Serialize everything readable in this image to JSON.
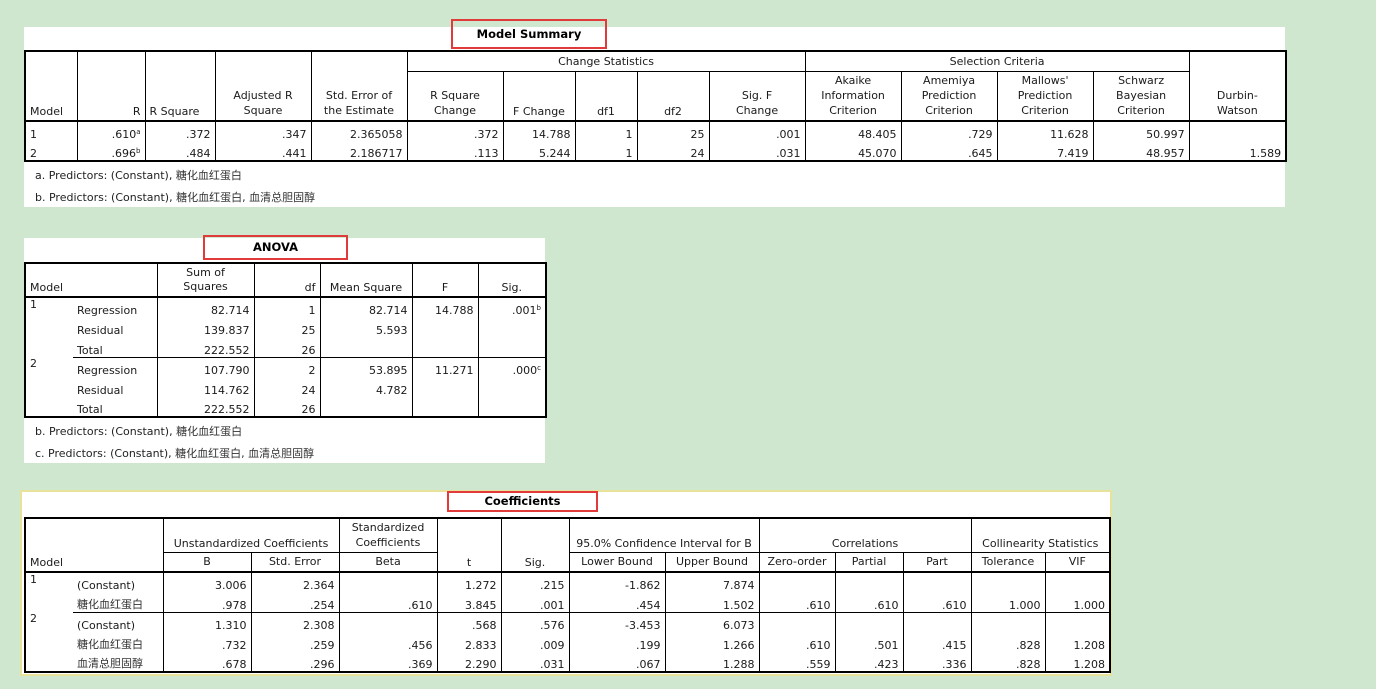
{
  "model_summary": {
    "title": "Model Summary",
    "group_change": "Change Statistics",
    "group_selection": "Selection Criteria",
    "h_model": "Model",
    "h_r": "R",
    "h_rsq": "R Square",
    "h_adj1": "Adjusted R",
    "h_adj2": "Square",
    "h_se1": "Std. Error of",
    "h_se2": "the Estimate",
    "h_rsqc1": "R Square",
    "h_rsqc2": "Change",
    "h_fch": "F Change",
    "h_df1": "df1",
    "h_df2": "df2",
    "h_sigf1": "Sig. F",
    "h_sigf2": "Change",
    "h_aic1": "Akaike",
    "h_aic2": "Information",
    "h_aic3": "Criterion",
    "h_am1": "Amemiya",
    "h_am2": "Prediction",
    "h_am3": "Criterion",
    "h_ml1": "Mallows'",
    "h_ml2": "Prediction",
    "h_ml3": "Criterion",
    "h_sb1": "Schwarz",
    "h_sb2": "Bayesian",
    "h_sb3": "Criterion",
    "h_dw1": "Durbin-",
    "h_dw2": "Watson",
    "rows": [
      {
        "model": "1",
        "r": ".610",
        "r_sup": "a",
        "rsq": ".372",
        "adj": ".347",
        "se": "2.365058",
        "rsqc": ".372",
        "fch": "14.788",
        "df1": "1",
        "df2": "25",
        "sigf": ".001",
        "aic": "48.405",
        "am": ".729",
        "ml": "11.628",
        "sb": "50.997",
        "dw": ""
      },
      {
        "model": "2",
        "r": ".696",
        "r_sup": "b",
        "rsq": ".484",
        "adj": ".441",
        "se": "2.186717",
        "rsqc": ".113",
        "fch": "5.244",
        "df1": "1",
        "df2": "24",
        "sigf": ".031",
        "aic": "45.070",
        "am": ".645",
        "ml": "7.419",
        "sb": "48.957",
        "dw": "1.589"
      }
    ],
    "foot_a_pre": "a. Predictors: (Constant), ",
    "foot_a_cn": "糖化血红蛋白",
    "foot_b_pre": "b. Predictors: (Constant), ",
    "foot_b_cn": "糖化血红蛋白, 血清总胆固醇"
  },
  "anova": {
    "title": "ANOVA",
    "h_model": "Model",
    "h_ss1": "Sum of",
    "h_ss2": "Squares",
    "h_df": "df",
    "h_ms": "Mean Square",
    "h_f": "F",
    "h_sig": "Sig.",
    "m1": "1",
    "m2": "2",
    "rows": [
      {
        "src": "Regression",
        "ss": "82.714",
        "df": "1",
        "ms": "82.714",
        "f": "14.788",
        "sig": ".001",
        "sig_sup": "b"
      },
      {
        "src": "Residual",
        "ss": "139.837",
        "df": "25",
        "ms": "5.593",
        "f": "",
        "sig": "",
        "sig_sup": ""
      },
      {
        "src": "Total",
        "ss": "222.552",
        "df": "26",
        "ms": "",
        "f": "",
        "sig": "",
        "sig_sup": ""
      },
      {
        "src": "Regression",
        "ss": "107.790",
        "df": "2",
        "ms": "53.895",
        "f": "11.271",
        "sig": ".000",
        "sig_sup": "c"
      },
      {
        "src": "Residual",
        "ss": "114.762",
        "df": "24",
        "ms": "4.782",
        "f": "",
        "sig": "",
        "sig_sup": ""
      },
      {
        "src": "Total",
        "ss": "222.552",
        "df": "26",
        "ms": "",
        "f": "",
        "sig": "",
        "sig_sup": ""
      }
    ],
    "foot_b_pre": "b. Predictors: (Constant), ",
    "foot_b_cn": "糖化血红蛋白",
    "foot_c_pre": "c. Predictors: (Constant), ",
    "foot_c_cn": "糖化血红蛋白, 血清总胆固醇"
  },
  "coefficients": {
    "title": "Coefficients",
    "h_model": "Model",
    "g_unstd": "Unstandardized Coefficients",
    "g_std1": "Standardized",
    "g_std2": "Coefficients",
    "g_ci": "95.0% Confidence Interval for B",
    "g_corr": "Correlations",
    "g_col": "Collinearity Statistics",
    "h_b": "B",
    "h_se": "Std. Error",
    "h_beta": "Beta",
    "h_t": "t",
    "h_sig": "Sig.",
    "h_lb": "Lower Bound",
    "h_ub": "Upper Bound",
    "h_zero": "Zero-order",
    "h_part": "Partial",
    "h_pt": "Part",
    "h_tol": "Tolerance",
    "h_vif": "VIF",
    "m1": "1",
    "m2": "2",
    "rows": [
      {
        "term": "(Constant)",
        "b": "3.006",
        "se": "2.364",
        "beta": "",
        "t": "1.272",
        "sig": ".215",
        "lb": "-1.862",
        "ub": "7.874",
        "zero": "",
        "partial": "",
        "part": "",
        "tol": "",
        "vif": ""
      },
      {
        "term": "糖化血红蛋白",
        "b": ".978",
        "se": ".254",
        "beta": ".610",
        "t": "3.845",
        "sig": ".001",
        "lb": ".454",
        "ub": "1.502",
        "zero": ".610",
        "partial": ".610",
        "part": ".610",
        "tol": "1.000",
        "vif": "1.000"
      },
      {
        "term": "(Constant)",
        "b": "1.310",
        "se": "2.308",
        "beta": "",
        "t": ".568",
        "sig": ".576",
        "lb": "-3.453",
        "ub": "6.073",
        "zero": "",
        "partial": "",
        "part": "",
        "tol": "",
        "vif": ""
      },
      {
        "term": "糖化血红蛋白",
        "b": ".732",
        "se": ".259",
        "beta": ".456",
        "t": "2.833",
        "sig": ".009",
        "lb": ".199",
        "ub": "1.266",
        "zero": ".610",
        "partial": ".501",
        "part": ".415",
        "tol": ".828",
        "vif": "1.208"
      },
      {
        "term": "血清总胆固醇",
        "b": ".678",
        "se": ".296",
        "beta": ".369",
        "t": "2.290",
        "sig": ".031",
        "lb": ".067",
        "ub": "1.288",
        "zero": ".559",
        "partial": ".423",
        "part": ".336",
        "tol": ".828",
        "vif": "1.208"
      }
    ]
  }
}
